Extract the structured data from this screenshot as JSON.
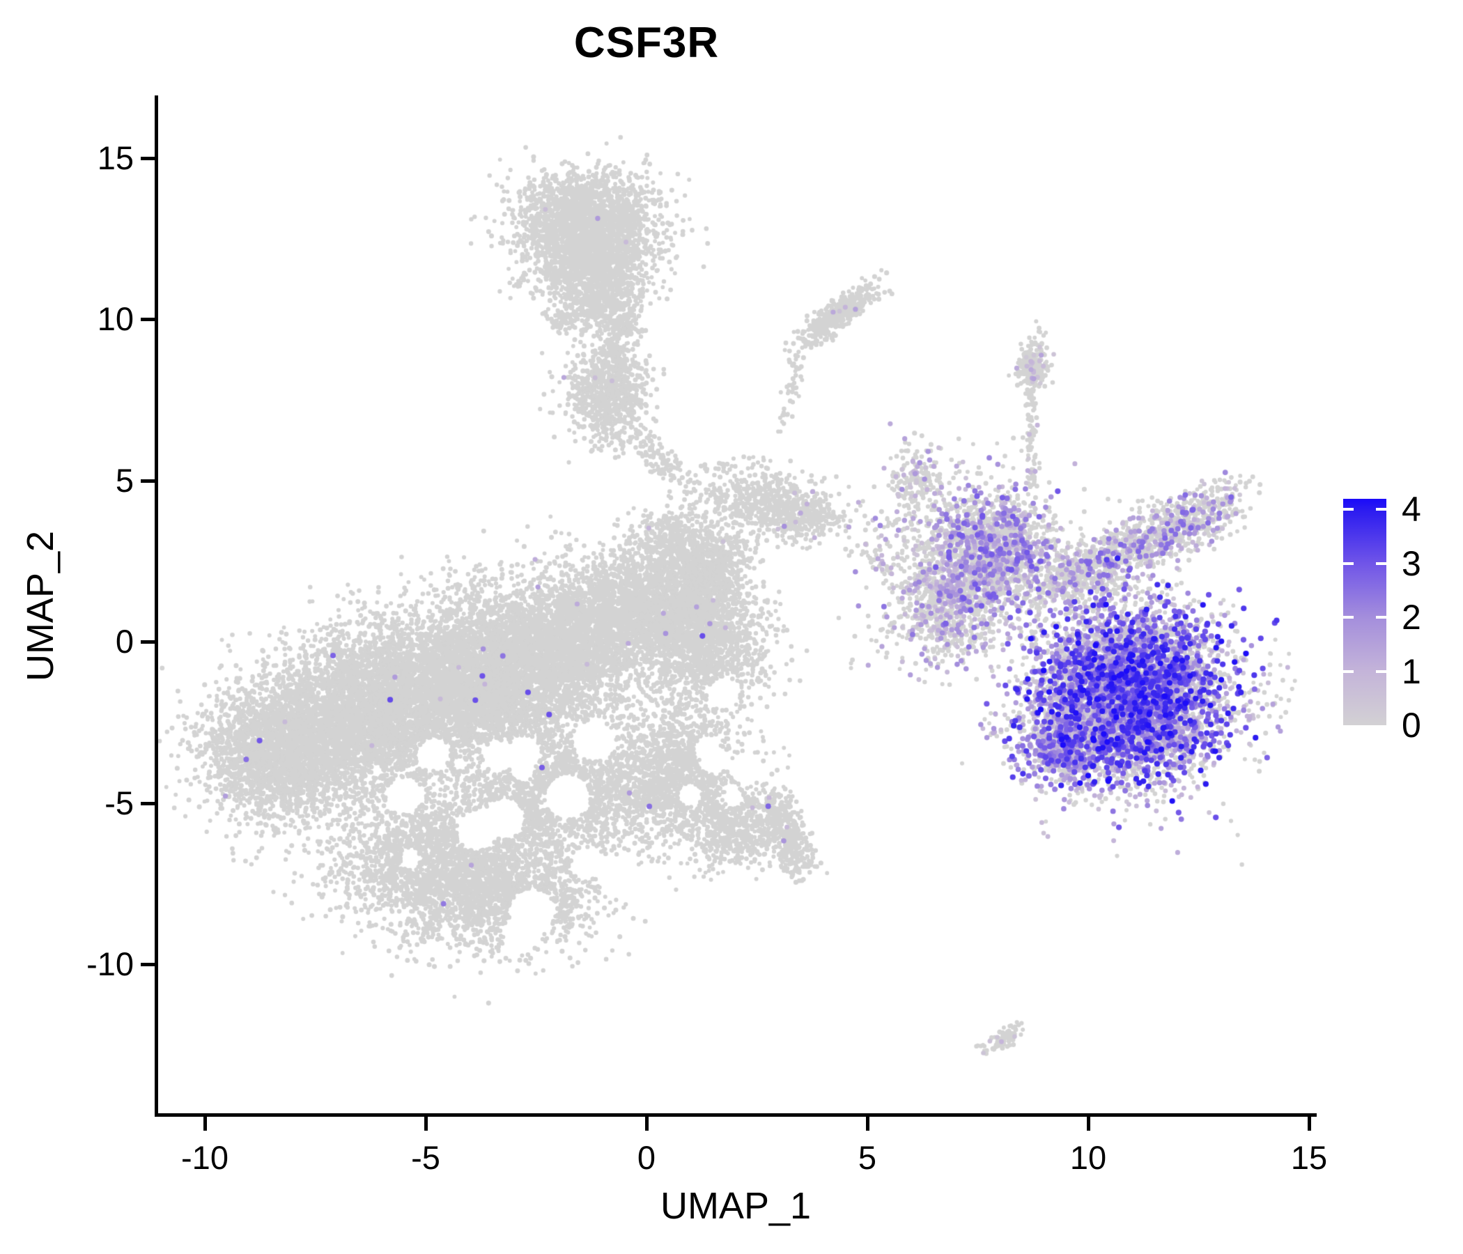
{
  "title": "CSF3R",
  "axes": {
    "x": {
      "label": "UMAP_1",
      "ticks": [
        "-10",
        "-5",
        "0",
        "5",
        "10",
        "15"
      ],
      "tick_values": [
        -10,
        -5,
        0,
        5,
        10,
        15
      ],
      "range": [
        -11.1,
        15.2
      ]
    },
    "y": {
      "label": "UMAP_2",
      "ticks": [
        "15",
        "10",
        "5",
        "0",
        "-5",
        "-10"
      ],
      "tick_values": [
        15,
        10,
        5,
        0,
        -5,
        -10
      ],
      "range": [
        -14.7,
        16.9
      ]
    }
  },
  "legend": {
    "tick_labels": [
      "4",
      "3",
      "2",
      "1",
      "0"
    ],
    "tick_values": [
      4,
      3,
      2,
      1,
      0
    ],
    "max_value": 4.2,
    "color_stops": [
      {
        "value": 0.0,
        "color": "#d3d1d4"
      },
      {
        "value": 1.0,
        "color": "#c4b4d9"
      },
      {
        "value": 2.0,
        "color": "#a48edc"
      },
      {
        "value": 3.0,
        "color": "#7055e8"
      },
      {
        "value": 4.0,
        "color": "#2b1bf0"
      },
      {
        "value": 4.2,
        "color": "#1a0afa"
      }
    ]
  },
  "style": {
    "point_gray": "#d3d3d3",
    "axis_color": "#000000",
    "background": "#ffffff",
    "accent_blue": "#1a0afa"
  },
  "chart_data": {
    "type": "scatter",
    "title": "CSF3R",
    "xlabel": "UMAP_1",
    "ylabel": "UMAP_2",
    "xlim": [
      -11.1,
      15.2
    ],
    "ylim": [
      -14.7,
      16.9
    ],
    "grid": false,
    "legend_position": "right",
    "point_color_zero": "#d3d3d3",
    "description": "Seurat-style UMAP feature plot of CSF3R expression. Large left-hand cell mass, upper blob with neck, small diagonal cluster near (4.5,10), sparse bridge strands near the origin and a right-hand myeloid cluster around (11,-1.5) strongly expressing CSF3R (purple/blue). Tiny isolated island near (8,-12.4).",
    "clusters": [
      {
        "name": "head-top",
        "shape": "gauss",
        "params": [
          -1.35,
          13.15,
          0.8,
          0.72,
          0
        ],
        "n": 1700,
        "expr_p": 0.0025,
        "expr_range": [
          0.5,
          2.0
        ]
      },
      {
        "name": "head-mid",
        "shape": "gauss",
        "params": [
          -1.3,
          11.75,
          0.7,
          0.6,
          0
        ],
        "n": 1050,
        "expr_p": 0.0025,
        "expr_range": [
          0.5,
          2.0
        ]
      },
      {
        "name": "head-bottom",
        "shape": "gauss",
        "params": [
          -1.05,
          10.55,
          0.45,
          0.5,
          0
        ],
        "n": 420,
        "expr_p": 0.002,
        "expr_range": [
          0.5,
          2.0
        ]
      },
      {
        "name": "head-tuft-left",
        "shape": "gauss",
        "params": [
          -1.95,
          9.95,
          0.18,
          0.2,
          0
        ],
        "n": 55,
        "expr_p": 0.0,
        "expr_range": [
          0.5,
          2.0
        ]
      },
      {
        "name": "head-tuft-right",
        "shape": "gauss",
        "params": [
          -0.55,
          9.8,
          0.2,
          0.22,
          0
        ],
        "n": 80,
        "expr_p": 0.0,
        "expr_range": [
          0.5,
          2.0
        ]
      },
      {
        "name": "neck-strand",
        "shape": "line",
        "params": [
          -0.82,
          9.35,
          -0.72,
          8.65,
          0.09
        ],
        "n": 55,
        "expr_p": 0.0,
        "expr_range": [
          0.5,
          2.0
        ]
      },
      {
        "name": "neck-blob",
        "shape": "gauss",
        "params": [
          -0.85,
          7.7,
          0.48,
          0.75,
          0
        ],
        "n": 820,
        "expr_p": 0.003,
        "expr_range": [
          0.5,
          2.0
        ]
      },
      {
        "name": "neck-blob-taper",
        "shape": "line",
        "params": [
          -0.3,
          6.5,
          0.6,
          5.4,
          0.16
        ],
        "n": 75,
        "expr_p": 0.005,
        "expr_range": [
          0.5,
          2.0
        ]
      },
      {
        "name": "comma-cluster",
        "shape": "gauss",
        "params": [
          4.35,
          10.15,
          0.6,
          0.17,
          47
        ],
        "n": 420,
        "expr_p": 0.008,
        "expr_range": [
          0.5,
          2.0
        ]
      },
      {
        "name": "comma-trail",
        "shape": "line",
        "params": [
          3.45,
          8.9,
          3.05,
          6.6,
          0.1
        ],
        "n": 42,
        "expr_p": 0.01,
        "expr_range": [
          0.5,
          2.0
        ]
      },
      {
        "name": "bridge-arc",
        "shape": "line",
        "params": [
          1.25,
          5.35,
          2.6,
          5.6,
          0.13
        ],
        "n": 30,
        "expr_p": 0.01,
        "expr_range": [
          0.5,
          2.0
        ]
      },
      {
        "name": "bridge-strand",
        "shape": "line",
        "params": [
          0.05,
          5.5,
          1.5,
          4.65,
          0.13
        ],
        "n": 50,
        "expr_p": 0.01,
        "expr_range": [
          0.5,
          2.0
        ]
      },
      {
        "name": "bridge-rhombus-a",
        "shape": "gauss",
        "params": [
          2.55,
          4.35,
          0.6,
          0.42,
          0
        ],
        "n": 420,
        "expr_p": 0.012,
        "expr_range": [
          0.5,
          2.0
        ]
      },
      {
        "name": "bridge-rhombus-b",
        "shape": "gauss",
        "params": [
          3.55,
          3.9,
          0.5,
          0.4,
          0
        ],
        "n": 320,
        "expr_p": 0.012,
        "expr_range": [
          0.5,
          2.0
        ]
      },
      {
        "name": "bridge-funnel",
        "shape": "line",
        "params": [
          1.95,
          3.0,
          0.95,
          1.1,
          0.34
        ],
        "n": 520,
        "expr_p": 0.006,
        "expr_range": [
          0.5,
          2.0
        ]
      },
      {
        "name": "bridge-funnel-w",
        "shape": "gauss",
        "params": [
          1.0,
          1.7,
          0.55,
          0.7,
          0
        ],
        "n": 280,
        "expr_p": 0.005,
        "expr_range": [
          0.5,
          2.0
        ]
      },
      {
        "name": "trail-to-right",
        "shape": "line",
        "params": [
          4.7,
          3.2,
          6.2,
          1.5,
          0.22
        ],
        "n": 55,
        "expr_p": 0.2,
        "expr_range": [
          0.4,
          1.8
        ]
      },
      {
        "name": "trail-mid-dots",
        "shape": "gauss",
        "params": [
          5.9,
          -0.2,
          0.5,
          0.5,
          0
        ],
        "n": 18,
        "expr_p": 0.15,
        "expr_range": [
          0.4,
          1.8
        ]
      },
      {
        "name": "left-1",
        "shape": "gauss",
        "params": [
          -8.35,
          -3.4,
          0.85,
          1.05,
          0
        ],
        "n": 2500,
        "expr_p": 0.0016,
        "expr_range": [
          0.8,
          3.2
        ]
      },
      {
        "name": "left-2",
        "shape": "gauss",
        "params": [
          -6.3,
          -2.2,
          1.0,
          1.25,
          0
        ],
        "n": 3300,
        "expr_p": 0.0016,
        "expr_range": [
          0.8,
          3.2
        ]
      },
      {
        "name": "left-3",
        "shape": "gauss",
        "params": [
          -4.0,
          -1.2,
          1.0,
          1.25,
          0
        ],
        "n": 3500,
        "expr_p": 0.0016,
        "expr_range": [
          0.8,
          3.2
        ]
      },
      {
        "name": "left-4",
        "shape": "gauss",
        "params": [
          -2.0,
          -0.3,
          0.9,
          1.15,
          0
        ],
        "n": 2700,
        "expr_p": 0.0016,
        "expr_range": [
          0.8,
          3.2
        ]
      },
      {
        "name": "left-5",
        "shape": "gauss",
        "params": [
          -0.3,
          1.0,
          0.75,
          0.9,
          0
        ],
        "n": 1600,
        "expr_p": 0.0016,
        "expr_range": [
          0.8,
          3.2
        ]
      },
      {
        "name": "left-6",
        "shape": "gauss",
        "params": [
          1.3,
          0.0,
          0.7,
          1.0,
          0
        ],
        "n": 1450,
        "expr_p": 0.002,
        "expr_range": [
          0.8,
          3.2
        ]
      },
      {
        "name": "left-7",
        "shape": "gauss",
        "params": [
          -4.6,
          -6.8,
          1.25,
          1.15,
          0
        ],
        "n": 2500,
        "expr_p": 0.0016,
        "expr_range": [
          0.8,
          3.2
        ]
      },
      {
        "name": "left-7b",
        "shape": "gauss",
        "params": [
          -2.9,
          -8.0,
          0.9,
          0.75,
          0
        ],
        "n": 1000,
        "expr_p": 0.0016,
        "expr_range": [
          0.8,
          3.2
        ]
      },
      {
        "name": "left-8",
        "shape": "gauss",
        "params": [
          -2.0,
          -4.6,
          1.1,
          1.0,
          0
        ],
        "n": 2000,
        "expr_p": 0.0016,
        "expr_range": [
          0.8,
          3.2
        ]
      },
      {
        "name": "left-9",
        "shape": "gauss",
        "params": [
          0.7,
          -4.1,
          0.8,
          1.05,
          0
        ],
        "n": 1400,
        "expr_p": 0.002,
        "expr_range": [
          0.8,
          3.2
        ]
      },
      {
        "name": "left-10",
        "shape": "gauss",
        "params": [
          2.0,
          -5.7,
          0.55,
          0.75,
          0
        ],
        "n": 600,
        "expr_p": 0.003,
        "expr_range": [
          0.8,
          3.2
        ]
      },
      {
        "name": "left-beak",
        "shape": "line",
        "params": [
          2.85,
          -4.9,
          3.5,
          -7.1,
          0.22
        ],
        "n": 360,
        "expr_p": 0.004,
        "expr_range": [
          0.8,
          3.2
        ]
      },
      {
        "name": "left-tongue",
        "shape": "gauss",
        "params": [
          0.75,
          3.0,
          0.5,
          0.55,
          0
        ],
        "n": 520,
        "expr_p": 0.002,
        "expr_range": [
          0.8,
          3.2
        ]
      },
      {
        "name": "ball-main",
        "shape": "gauss",
        "params": [
          10.9,
          -1.6,
          1.05,
          1.35,
          0
        ],
        "n": 5200,
        "expr_p": 0.6,
        "expr_range": [
          0.35,
          4.2
        ]
      },
      {
        "name": "ball-southwest",
        "shape": "gauss",
        "params": [
          9.4,
          -3.3,
          0.5,
          0.55,
          0
        ],
        "n": 550,
        "expr_p": 0.55,
        "expr_range": [
          0.35,
          3.5
        ]
      },
      {
        "name": "ball-offshoot",
        "shape": "gauss",
        "params": [
          7.8,
          -2.8,
          0.13,
          0.11,
          0
        ],
        "n": 12,
        "expr_p": 0.3,
        "expr_range": [
          0.5,
          2.0
        ]
      },
      {
        "name": "lobe",
        "shape": "gauss",
        "params": [
          7.85,
          2.7,
          0.72,
          0.95,
          0
        ],
        "n": 1500,
        "expr_p": 0.35,
        "expr_range": [
          0.3,
          3.0
        ]
      },
      {
        "name": "lobe-west",
        "shape": "gauss",
        "params": [
          6.9,
          1.0,
          0.55,
          0.8,
          0
        ],
        "n": 650,
        "expr_p": 0.3,
        "expr_range": [
          0.3,
          2.5
        ]
      },
      {
        "name": "arm-northeast",
        "shape": "line",
        "params": [
          9.2,
          1.6,
          13.0,
          4.3,
          0.4
        ],
        "n": 1250,
        "expr_p": 0.26,
        "expr_range": [
          0.3,
          2.8
        ]
      },
      {
        "name": "arm-tip-trail",
        "shape": "line",
        "params": [
          13.1,
          4.4,
          13.8,
          5.2,
          0.12
        ],
        "n": 12,
        "expr_p": 0.2,
        "expr_range": [
          0.3,
          1.5
        ]
      },
      {
        "name": "spike-knob",
        "shape": "gauss",
        "params": [
          8.75,
          8.5,
          0.18,
          0.33,
          0
        ],
        "n": 220,
        "expr_p": 0.1,
        "expr_range": [
          0.3,
          1.5
        ]
      },
      {
        "name": "spike-strand",
        "shape": "line",
        "params": [
          8.68,
          7.9,
          8.72,
          4.8,
          0.07
        ],
        "n": 85,
        "expr_p": 0.08,
        "expr_range": [
          0.3,
          1.5
        ]
      },
      {
        "name": "spike-strays",
        "shape": "gauss",
        "params": [
          8.85,
          9.6,
          0.12,
          0.18,
          0
        ],
        "n": 7,
        "expr_p": 0.0,
        "expr_range": [
          0.3,
          1.5
        ]
      },
      {
        "name": "spray-clump",
        "shape": "gauss",
        "params": [
          6.1,
          5.2,
          0.3,
          0.5,
          0
        ],
        "n": 150,
        "expr_p": 0.15,
        "expr_range": [
          0.3,
          2.0
        ]
      },
      {
        "name": "spray-scatter",
        "shape": "gauss",
        "params": [
          6.7,
          3.5,
          0.8,
          1.1,
          0
        ],
        "n": 300,
        "expr_p": 0.25,
        "expr_range": [
          0.3,
          2.2
        ]
      },
      {
        "name": "spray-left-dots",
        "shape": "gauss",
        "params": [
          5.75,
          0.4,
          0.55,
          0.65,
          0
        ],
        "n": 40,
        "expr_p": 0.3,
        "expr_range": [
          0.3,
          2.0
        ]
      },
      {
        "name": "right-edge-spray",
        "shape": "gauss",
        "params": [
          14.1,
          -1.6,
          0.4,
          0.8,
          0
        ],
        "n": 26,
        "expr_p": 0.3,
        "expr_range": [
          0.3,
          2.0
        ]
      },
      {
        "name": "tiny-island",
        "shape": "line",
        "params": [
          7.7,
          -12.65,
          8.35,
          -12.05,
          0.13
        ],
        "n": 70,
        "expr_p": 0.05,
        "expr_range": [
          0.4,
          1.5
        ]
      },
      {
        "name": "tiny-island-dot",
        "shape": "gauss",
        "params": [
          7.5,
          -12.55,
          0.04,
          0.04,
          0
        ],
        "n": 2,
        "expr_p": 0.0,
        "expr_range": [
          0.4,
          1.5
        ]
      }
    ]
  }
}
